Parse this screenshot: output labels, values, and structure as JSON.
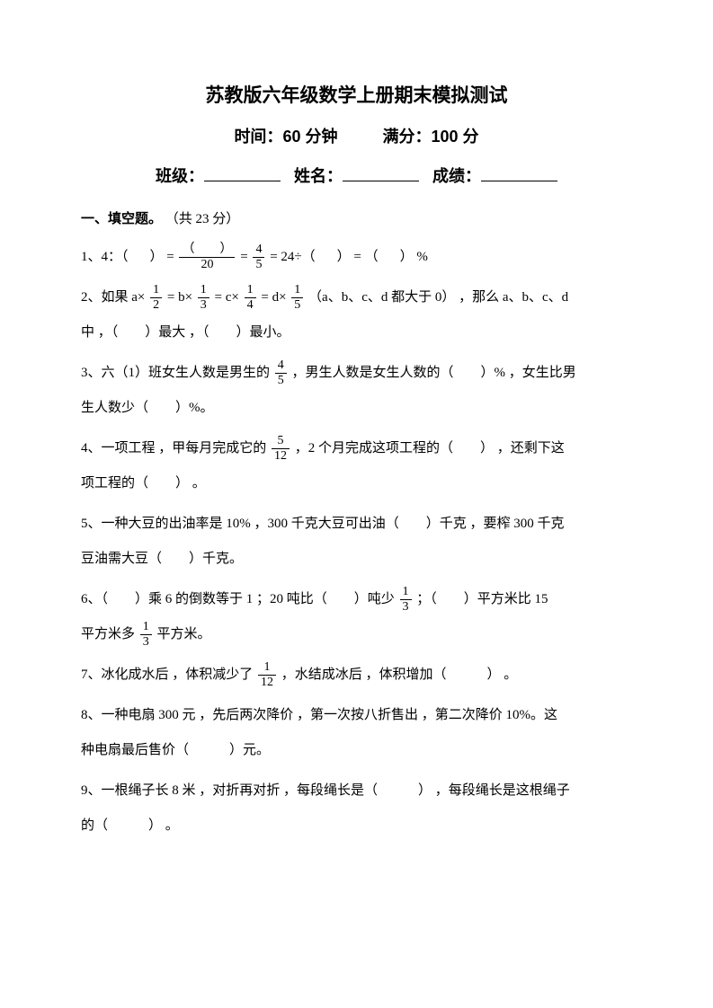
{
  "title": "苏教版六年级数学上册期末模拟测试",
  "time_label": "时间：",
  "time_value": "60 分钟",
  "score_label": "满分：",
  "score_value": "100 分",
  "class_label": "班级：",
  "name_label": "姓名：",
  "grade_label": "成绩：",
  "section1": {
    "header": "一、填空题。",
    "points": "（共 23 分）"
  },
  "q1": {
    "prefix": "1、4：（",
    "mid1": "）  = ",
    "frac1_num": "（　　）",
    "frac1_den": "20",
    "mid2": " = ",
    "frac2_num": "4",
    "frac2_den": "5",
    "mid3": " = 24÷（",
    "mid4": "）  =  （",
    "suffix": "） %"
  },
  "q2": {
    "prefix": "2、如果 a×",
    "f1n": "1",
    "f1d": "2",
    "m1": " = b×",
    "f2n": "1",
    "f2d": "3",
    "m2": " = c×",
    "f3n": "1",
    "f3d": "4",
    "m3": " = d×",
    "f4n": "1",
    "f4d": "5",
    "m4": "（a、b、c、d 都大于 0） ，那么 a、b、c、d",
    "line2": "中 ，（　　）最大 ，（　　）最小。"
  },
  "q3": {
    "prefix": "3、六（1）班女生人数是男生的",
    "fn": "4",
    "fd": "5",
    "mid": " ，男生人数是女生人数的（　　）% ，女生比男",
    "line2": "生人数少（　　）%。"
  },
  "q4": {
    "prefix": "4、一项工程 ，甲每月完成它的",
    "fn": "5",
    "fd": "12",
    "mid": "  ，2 个月完成这项工程的（　　） ，还剩下这",
    "line2": "项工程的（　　） 。"
  },
  "q5": {
    "line1": "5、一种大豆的出油率是 10% ，300 千克大豆可出油（　　）千克 ，要榨 300 千克",
    "line2": "豆油需大豆（　　）千克。"
  },
  "q6": {
    "prefix": "6、（　　）乘 6 的倒数等于 1 ；20 吨比（　　）吨少",
    "f1n": "1",
    "f1d": "3",
    "mid": " ；（　　）平方米比 15",
    "line2_prefix": "平方米多",
    "f2n": "1",
    "f2d": "3",
    "line2_suffix": " 平方米。"
  },
  "q7": {
    "prefix": "7、冰化成水后 ，体积减少了",
    "fn": "1",
    "fd": "12",
    "suffix": "  ，水结成冰后 ，体积增加（　　　） 。"
  },
  "q8": {
    "line1": "8、一种电扇 300 元 ，先后两次降价 ，第一次按八折售出 ，第二次降价 10%。这",
    "line2": "种电扇最后售价（　　　）元。"
  },
  "q9": {
    "line1": "9、一根绳子长 8 米 ，对折再对折 ，每段绳长是（　　　） ，每段绳长是这根绳子",
    "line2": "的（　　　） 。"
  }
}
